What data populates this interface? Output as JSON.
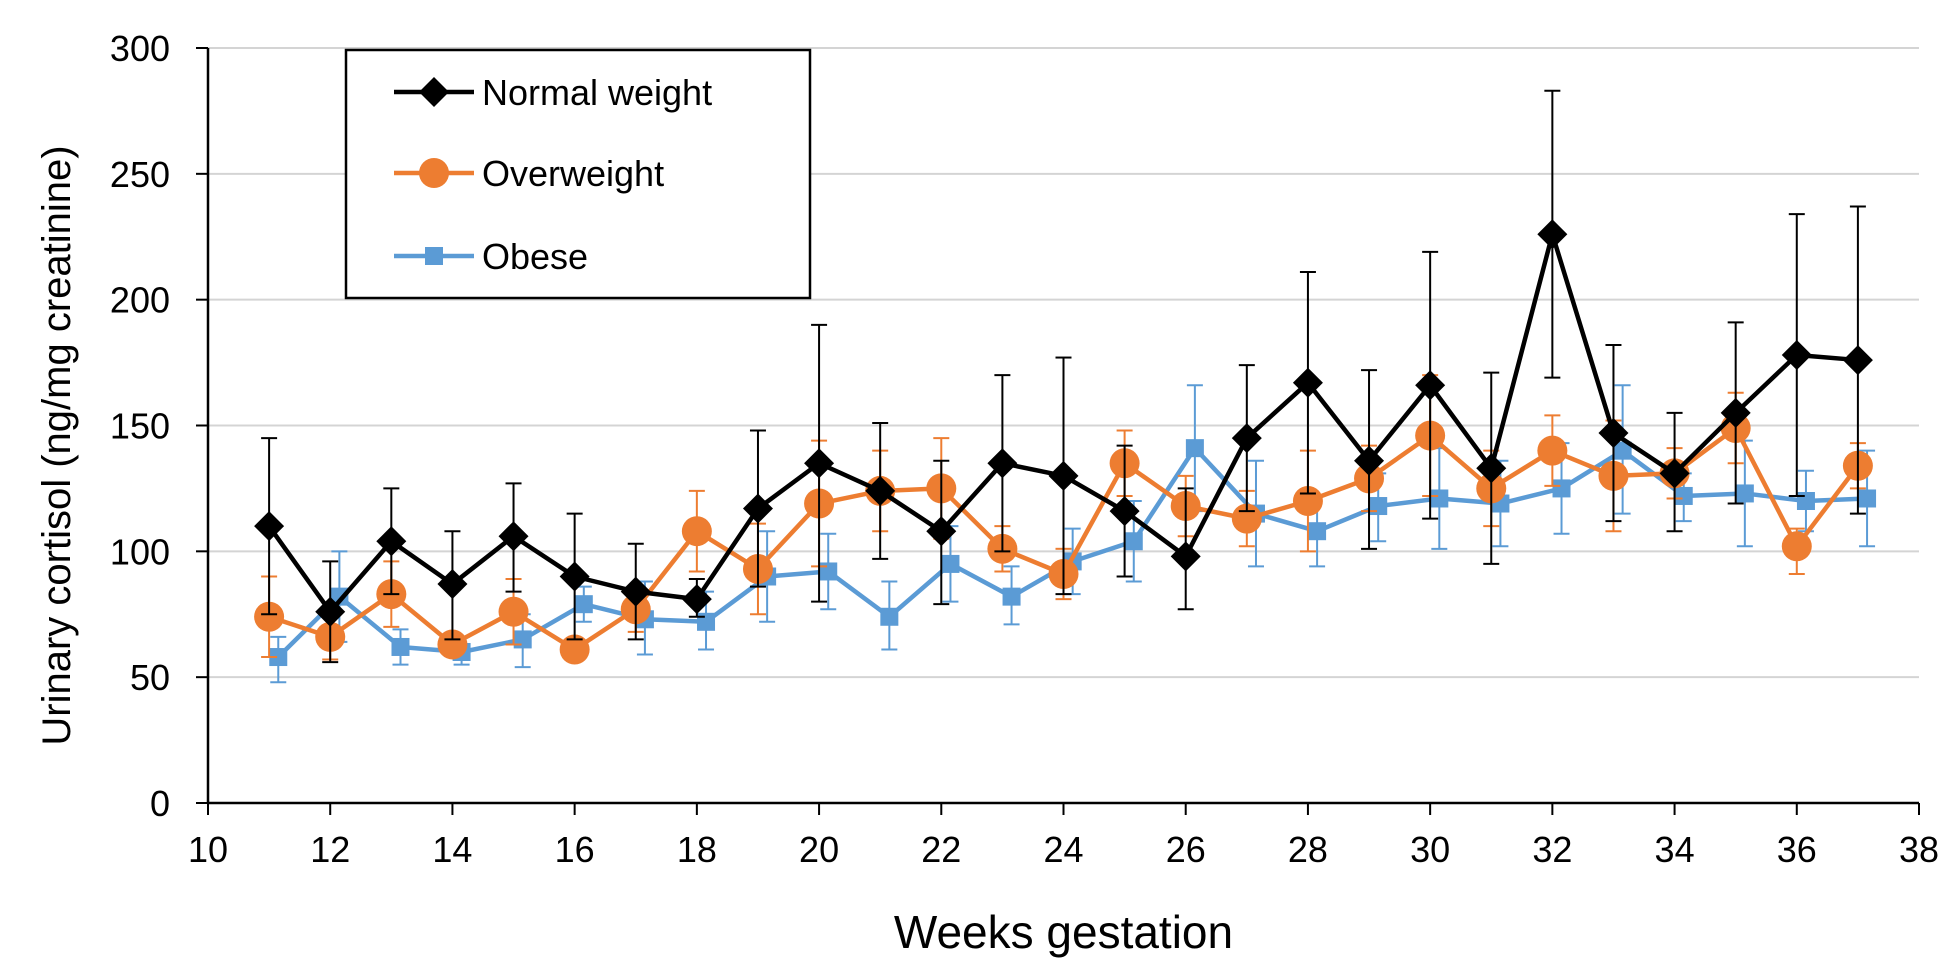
{
  "chart_data": {
    "type": "line",
    "title": "",
    "xlabel": "Weeks gestation",
    "ylabel": "Urinary cortisol (ng/mg creatinine)",
    "xlim": [
      10,
      38
    ],
    "ylim": [
      0,
      300
    ],
    "x_ticks": [
      10,
      12,
      14,
      16,
      18,
      20,
      22,
      24,
      26,
      28,
      30,
      32,
      34,
      36,
      38
    ],
    "y_ticks": [
      0,
      50,
      100,
      150,
      200,
      250,
      300
    ],
    "grid": "horizontal",
    "legend_position": "top-left",
    "series": [
      {
        "name": "Normal weight",
        "color": "#000000",
        "marker": "diamond",
        "x": [
          11,
          12,
          13,
          14,
          15,
          16,
          17,
          18,
          19,
          20,
          21,
          22,
          23,
          24,
          25,
          26,
          27,
          28,
          29,
          30,
          31,
          32,
          33,
          34,
          35,
          36,
          37
        ],
        "values": [
          110,
          76,
          104,
          87,
          106,
          90,
          84,
          81,
          117,
          135,
          124,
          108,
          135,
          130,
          116,
          98,
          145,
          167,
          136,
          166,
          133,
          226,
          147,
          131,
          155,
          178,
          176
        ],
        "error_upper": [
          145,
          96,
          125,
          108,
          127,
          115,
          103,
          89,
          148,
          190,
          151,
          136,
          170,
          177,
          142,
          125,
          174,
          211,
          172,
          219,
          171,
          283,
          182,
          155,
          191,
          234,
          237
        ],
        "error_lower": [
          75,
          56,
          83,
          65,
          84,
          65,
          65,
          74,
          86,
          80,
          97,
          79,
          100,
          83,
          90,
          77,
          116,
          123,
          101,
          113,
          95,
          169,
          112,
          108,
          119,
          122,
          115
        ]
      },
      {
        "name": "Overweight",
        "color": "#ED7D31",
        "marker": "circle",
        "x": [
          11,
          12,
          13,
          14,
          15,
          16,
          17,
          18,
          19,
          20,
          21,
          22,
          23,
          24,
          25,
          26,
          27,
          28,
          29,
          30,
          31,
          32,
          33,
          34,
          35,
          36,
          37
        ],
        "values": [
          74,
          66,
          83,
          63,
          76,
          61,
          77,
          108,
          93,
          119,
          124,
          125,
          101,
          91,
          135,
          118,
          113,
          120,
          129,
          146,
          125,
          140,
          130,
          131,
          149,
          102,
          134
        ],
        "error_upper": [
          90,
          75,
          96,
          67,
          89,
          65,
          86,
          124,
          111,
          144,
          140,
          145,
          110,
          101,
          148,
          130,
          124,
          140,
          142,
          170,
          140,
          154,
          152,
          141,
          163,
          109,
          143
        ],
        "error_lower": [
          58,
          57,
          70,
          59,
          63,
          57,
          68,
          92,
          75,
          94,
          108,
          105,
          92,
          81,
          122,
          106,
          102,
          100,
          116,
          122,
          110,
          126,
          108,
          121,
          135,
          91,
          125
        ]
      },
      {
        "name": "Obese",
        "color": "#5B9BD5",
        "marker": "square",
        "x": [
          11.15,
          12.15,
          13.15,
          14.15,
          15.15,
          16.15,
          17.15,
          18.15,
          19.15,
          20.15,
          21.15,
          22.15,
          23.15,
          24.15,
          25.15,
          26.15,
          27.15,
          28.15,
          29.15,
          30.15,
          31.15,
          32.15,
          33.15,
          34.15,
          35.15,
          36.15,
          37.15
        ],
        "values": [
          58,
          82,
          62,
          60,
          65,
          79,
          73,
          72,
          90,
          92,
          74,
          95,
          82,
          96,
          104,
          141,
          115,
          108,
          118,
          121,
          119,
          125,
          140,
          122,
          123,
          120,
          121
        ],
        "error_upper": [
          66,
          100,
          69,
          66,
          75,
          86,
          88,
          84,
          108,
          107,
          88,
          110,
          94,
          109,
          120,
          166,
          136,
          122,
          131,
          141,
          136,
          143,
          166,
          131,
          144,
          132,
          140
        ],
        "error_lower": [
          48,
          64,
          55,
          55,
          54,
          72,
          59,
          61,
          72,
          77,
          61,
          80,
          71,
          83,
          88,
          116,
          94,
          94,
          104,
          101,
          102,
          107,
          115,
          112,
          102,
          108,
          102
        ]
      }
    ]
  }
}
